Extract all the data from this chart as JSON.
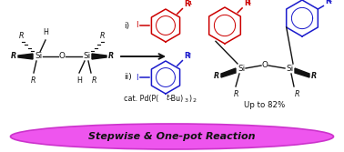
{
  "background_color": "#ffffff",
  "red_color": "#cc0000",
  "blue_color": "#1a1acc",
  "black_color": "#111111",
  "pink_color": "#ee55ee",
  "pink_edge": "#cc33cc",
  "banner_text": "Stepwise & One-pot Reaction",
  "yield_text": "Up to 82%",
  "step_i": "i)",
  "step_ii": "ii)",
  "cat_line": "cat. Pd(P(t-Bu)₃)₂"
}
